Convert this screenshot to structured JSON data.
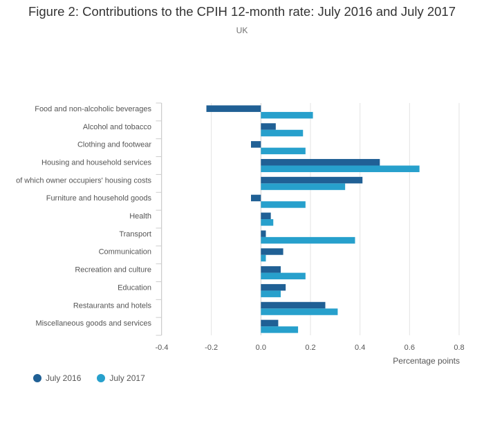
{
  "chart_data": {
    "type": "bar",
    "orientation": "horizontal",
    "title": "Figure 2: Contributions to the CPIH 12-month rate: July 2016 and July 2017",
    "subtitle": "UK",
    "xlabel": "Percentage points",
    "xlim": [
      -0.4,
      0.8
    ],
    "xticks": [
      -0.4,
      -0.2,
      0.0,
      0.2,
      0.4,
      0.6,
      0.8
    ],
    "xtick_labels": [
      "-0.4",
      "-0.2",
      "0.0",
      "0.2",
      "0.4",
      "0.6",
      "0.8"
    ],
    "grid": true,
    "legend_position": "bottom-left",
    "categories": [
      "Food and non-alcoholic beverages",
      "Alcohol and tobacco",
      "Clothing and footwear",
      "Housing and household services",
      "of which owner occupiers' housing costs",
      "Furniture and household goods",
      "Health",
      "Transport",
      "Communication",
      "Recreation and culture",
      "Education",
      "Restaurants and hotels",
      "Miscellaneous goods and services"
    ],
    "series": [
      {
        "name": "July 2016",
        "color": "#206095",
        "values": [
          -0.22,
          0.06,
          -0.04,
          0.48,
          0.41,
          -0.04,
          0.04,
          0.02,
          0.09,
          0.08,
          0.1,
          0.26,
          0.07
        ]
      },
      {
        "name": "July 2017",
        "color": "#27a0cc",
        "values": [
          0.21,
          0.17,
          0.18,
          0.64,
          0.34,
          0.18,
          0.05,
          0.38,
          0.02,
          0.18,
          0.08,
          0.31,
          0.15
        ]
      }
    ]
  }
}
